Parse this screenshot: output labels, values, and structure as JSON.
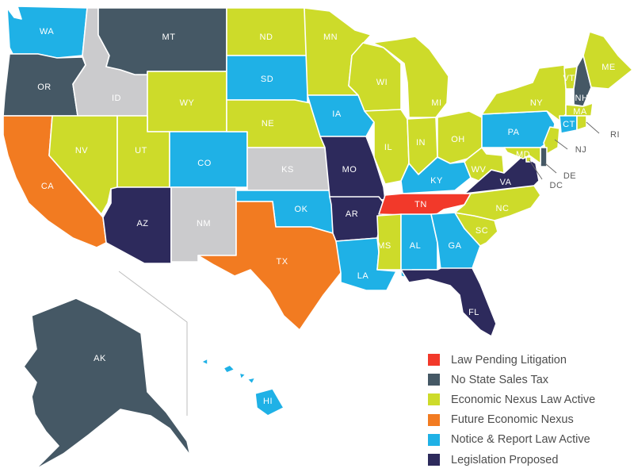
{
  "categories": {
    "pending": {
      "label": "Law Pending Litigation",
      "color": "#f2392a"
    },
    "notax": {
      "label": "No State Sales Tax",
      "color": "#455865"
    },
    "nexus": {
      "label": "Economic Nexus Law Active",
      "color": "#cddb2a"
    },
    "future": {
      "label": "Future Economic Nexus",
      "color": "#f27b21"
    },
    "notice": {
      "label": "Notice & Report Law Active",
      "color": "#1fb1e6"
    },
    "proposed": {
      "label": "Legislation Proposed",
      "color": "#2d2a5c"
    },
    "none": {
      "label": "",
      "color": "#cbcbcd"
    }
  },
  "legend_order": [
    "pending",
    "notax",
    "nexus",
    "future",
    "notice",
    "proposed"
  ],
  "states": {
    "WA": "notice",
    "OR": "notax",
    "CA": "future",
    "ID": "none",
    "NV": "nexus",
    "MT": "notax",
    "WY": "nexus",
    "UT": "nexus",
    "AZ": "proposed",
    "CO": "notice",
    "NM": "none",
    "ND": "nexus",
    "SD": "notice",
    "NE": "nexus",
    "KS": "none",
    "OK": "notice",
    "TX": "future",
    "MN": "nexus",
    "IA": "notice",
    "MO": "proposed",
    "AR": "proposed",
    "LA": "notice",
    "WI": "nexus",
    "IL": "nexus",
    "MI": "nexus",
    "IN": "nexus",
    "OH": "nexus",
    "KY": "notice",
    "TN": "pending",
    "MS": "nexus",
    "AL": "notice",
    "GA": "notice",
    "FL": "proposed",
    "SC": "nexus",
    "NC": "nexus",
    "VA": "proposed",
    "WV": "nexus",
    "PA": "notice",
    "NY": "nexus",
    "VT": "nexus",
    "NH": "notax",
    "ME": "nexus",
    "MA": "nexus",
    "CT": "notice",
    "RI": "nexus",
    "NJ": "nexus",
    "DE": "notax",
    "MD": "nexus",
    "DC": "nexus",
    "AK": "notax",
    "HI": "notice"
  }
}
